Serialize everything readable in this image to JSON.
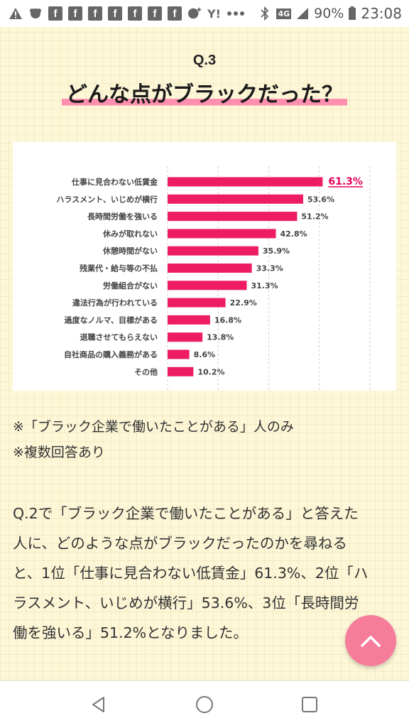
{
  "status_bar": {
    "network": "4G",
    "battery": "90%",
    "time": "23:08",
    "icons": [
      "warning-icon",
      "notification-icon",
      "facebook-icon",
      "facebook-icon",
      "facebook-icon",
      "facebook-icon",
      "facebook-icon",
      "facebook-icon",
      "facebook-icon",
      "game-icon",
      "yahoo-icon",
      "more-icon",
      "bluetooth-icon",
      "signal-icon",
      "battery-icon"
    ],
    "yahoo_label": "Y!",
    "fb_label": "f"
  },
  "article": {
    "question_number": "Q.3",
    "question_title": "どんな点がブラックだった？",
    "note_1": "※「ブラック企業で働いたことがある」人のみ",
    "note_2": "※複数回答あり",
    "body_lines": [
      "Q.2で「ブラック企業で働いたことがある」と答えた",
      "人に、どのような点がブラックだったのかを尋ねる",
      "と、1位「仕事に見合わない低賃金」61.3%、2位「ハ",
      "ラスメント、いじめが横行」53.6%、3位「長時間労",
      "働を強いる」51.2%となりました。"
    ]
  },
  "colors": {
    "bar": "#ee1c63",
    "highlight_label": "#e6005c",
    "accent_pink": "#f67c9c",
    "title_underline": "#ff8fb0"
  },
  "chart_data": {
    "type": "bar",
    "orientation": "horizontal",
    "categories": [
      "仕事に見合わない低賃金",
      "ハラスメント、いじめが横行",
      "長時間労働を強いる",
      "休みが取れない",
      "休憩時間がない",
      "残業代・給与等の不払",
      "労働組合がない",
      "違法行為が行われている",
      "過度なノルマ、目標がある",
      "退職させてもらえない",
      "自社商品の購入義務がある",
      "その他"
    ],
    "values": [
      61.3,
      53.6,
      51.2,
      42.8,
      35.9,
      33.3,
      31.3,
      22.9,
      16.8,
      13.8,
      8.6,
      10.2
    ],
    "value_labels": [
      "61.3%",
      "53.6%",
      "51.2%",
      "42.8%",
      "35.9%",
      "33.3%",
      "31.3%",
      "22.9%",
      "16.8%",
      "13.8%",
      "8.6%",
      "10.2%"
    ],
    "highlighted_index": 0,
    "xlim": [
      0,
      80
    ],
    "x_ticks": [
      "0%",
      "20%",
      "40%",
      "60%",
      "80%"
    ],
    "grid": "vertical dashed lines",
    "legend": "none",
    "title": "",
    "xlabel": "",
    "ylabel": ""
  }
}
